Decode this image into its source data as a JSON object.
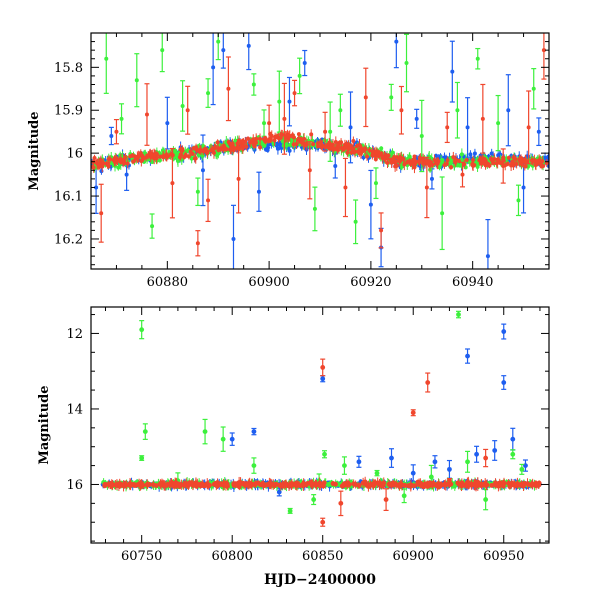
{
  "figure": {
    "xlabel": "HJD−2400000"
  },
  "palette": {
    "green": "#3cf03c",
    "blue": "#1e5ef0",
    "red": "#f0462d"
  },
  "chart_data": [
    {
      "type": "scatter",
      "title": "",
      "xlabel": "",
      "ylabel": "Magnitude",
      "xlim": [
        60865,
        60955
      ],
      "ylim": [
        16.27,
        15.72
      ],
      "y_inverted": true,
      "x_ticks": [
        "60880",
        "60900",
        "60920",
        "60940"
      ],
      "y_ticks": [
        "15.8",
        "15.9",
        "16",
        "16.1",
        "16.2"
      ],
      "series": [
        {
          "name": "green",
          "color": "#3cf03c",
          "baseline": [
            [
              60865,
              16.03
            ],
            [
              60875,
              16.01
            ],
            [
              60885,
              16.0
            ],
            [
              60895,
              15.98
            ],
            [
              60903,
              15.97
            ],
            [
              60910,
              15.98
            ],
            [
              60918,
              15.99
            ],
            [
              60926,
              16.02
            ],
            [
              60934,
              16.02
            ],
            [
              60944,
              16.02
            ],
            [
              60955,
              16.02
            ]
          ],
          "outliers": [
            [
              60868,
              15.78
            ],
            [
              60871,
              15.92
            ],
            [
              60874,
              15.83
            ],
            [
              60877,
              16.17
            ],
            [
              60879,
              15.76
            ],
            [
              60883,
              15.89
            ],
            [
              60886,
              16.09
            ],
            [
              60888,
              15.86
            ],
            [
              60890,
              15.74
            ],
            [
              60897,
              15.84
            ],
            [
              60899,
              15.93
            ],
            [
              60902,
              15.88
            ],
            [
              60906,
              15.82
            ],
            [
              60909,
              16.13
            ],
            [
              60912,
              15.95
            ],
            [
              60914,
              15.9
            ],
            [
              60917,
              16.16
            ],
            [
              60921,
              16.07
            ],
            [
              60924,
              15.87
            ],
            [
              60927,
              15.79
            ],
            [
              60930,
              15.96
            ],
            [
              60934,
              16.14
            ],
            [
              60937,
              15.9
            ],
            [
              60941,
              15.78
            ],
            [
              60945,
              15.93
            ],
            [
              60949,
              16.11
            ],
            [
              60952,
              15.85
            ]
          ]
        },
        {
          "name": "blue",
          "color": "#1e5ef0",
          "baseline": [
            [
              60865,
              16.03
            ],
            [
              60875,
              16.01
            ],
            [
              60885,
              16.0
            ],
            [
              60895,
              15.98
            ],
            [
              60903,
              15.98
            ],
            [
              60910,
              15.98
            ],
            [
              60918,
              15.99
            ],
            [
              60926,
              16.02
            ],
            [
              60934,
              16.02
            ],
            [
              60944,
              16.01
            ],
            [
              60955,
              16.02
            ]
          ],
          "outliers": [
            [
              60866,
              16.08
            ],
            [
              60869,
              15.96
            ],
            [
              60872,
              16.05
            ],
            [
              60880,
              15.93
            ],
            [
              60887,
              16.04
            ],
            [
              60889,
              15.8
            ],
            [
              60891,
              15.76
            ],
            [
              60893,
              16.2
            ],
            [
              60896,
              15.75
            ],
            [
              60898,
              16.09
            ],
            [
              60904,
              15.88
            ],
            [
              60907,
              15.79
            ],
            [
              60913,
              16.03
            ],
            [
              60916,
              15.94
            ],
            [
              60920,
              16.12
            ],
            [
              60922,
              16.22
            ],
            [
              60925,
              15.74
            ],
            [
              60929,
              15.92
            ],
            [
              60932,
              16.06
            ],
            [
              60936,
              15.81
            ],
            [
              60939,
              15.94
            ],
            [
              60943,
              16.24
            ],
            [
              60947,
              15.9
            ],
            [
              60950,
              16.08
            ],
            [
              60953,
              15.95
            ]
          ]
        },
        {
          "name": "red",
          "color": "#f0462d",
          "baseline": [
            [
              60865,
              16.03
            ],
            [
              60875,
              16.01
            ],
            [
              60885,
              16.0
            ],
            [
              60895,
              15.98
            ],
            [
              60903,
              15.96
            ],
            [
              60910,
              15.98
            ],
            [
              60918,
              15.99
            ],
            [
              60926,
              16.02
            ],
            [
              60934,
              16.02
            ],
            [
              60944,
              16.02
            ],
            [
              60955,
              16.02
            ]
          ],
          "outliers": [
            [
              60867,
              16.14
            ],
            [
              60870,
              15.95
            ],
            [
              60876,
              15.91
            ],
            [
              60881,
              16.07
            ],
            [
              60884,
              15.9
            ],
            [
              60886,
              16.21
            ],
            [
              60888,
              16.11
            ],
            [
              60892,
              15.85
            ],
            [
              60894,
              16.06
            ],
            [
              60900,
              15.93
            ],
            [
              60903,
              15.92
            ],
            [
              60905,
              15.86
            ],
            [
              60908,
              16.04
            ],
            [
              60911,
              15.95
            ],
            [
              60915,
              16.08
            ],
            [
              60919,
              15.87
            ],
            [
              60922,
              16.18
            ],
            [
              60926,
              15.9
            ],
            [
              60931,
              16.08
            ],
            [
              60935,
              15.94
            ],
            [
              60938,
              16.05
            ],
            [
              60942,
              15.92
            ],
            [
              60946,
              16.03
            ],
            [
              60951,
              15.94
            ],
            [
              60954,
              15.76
            ]
          ]
        }
      ]
    },
    {
      "type": "scatter",
      "title": "",
      "xlabel": "HJD−2400000",
      "ylabel": "Magnitude",
      "xlim": [
        60722,
        60975
      ],
      "ylim": [
        17.55,
        11.3
      ],
      "y_inverted": true,
      "x_ticks": [
        "60750",
        "60800",
        "60850",
        "60900",
        "60950"
      ],
      "y_ticks": [
        "12",
        "14",
        "16"
      ],
      "series": [
        {
          "name": "green",
          "color": "#3cf03c",
          "baseline": [
            [
              60728,
              16.0
            ],
            [
              60970,
              16.0
            ]
          ],
          "outliers": [
            [
              60750,
              11.9
            ],
            [
              60752,
              14.6
            ],
            [
              60750,
              15.3
            ],
            [
              60770,
              15.9
            ],
            [
              60785,
              14.6
            ],
            [
              60795,
              14.8
            ],
            [
              60812,
              15.5
            ],
            [
              60832,
              16.7
            ],
            [
              60845,
              16.4
            ],
            [
              60848,
              15.9
            ],
            [
              60851,
              15.2
            ],
            [
              60862,
              15.5
            ],
            [
              60880,
              15.7
            ],
            [
              60895,
              16.3
            ],
            [
              60910,
              15.8
            ],
            [
              60925,
              11.5
            ],
            [
              60930,
              15.4
            ],
            [
              60940,
              16.4
            ],
            [
              60955,
              15.2
            ],
            [
              60960,
              15.6
            ]
          ]
        },
        {
          "name": "blue",
          "color": "#1e5ef0",
          "baseline": [
            [
              60728,
              16.0
            ],
            [
              60970,
              16.0
            ]
          ],
          "outliers": [
            [
              60800,
              14.8
            ],
            [
              60812,
              14.6
            ],
            [
              60826,
              16.2
            ],
            [
              60850,
              13.2
            ],
            [
              60870,
              15.4
            ],
            [
              60888,
              15.3
            ],
            [
              60900,
              15.7
            ],
            [
              60912,
              15.4
            ],
            [
              60920,
              15.6
            ],
            [
              60930,
              12.6
            ],
            [
              60935,
              15.2
            ],
            [
              60945,
              15.1
            ],
            [
              60950,
              11.95
            ],
            [
              60950,
              13.3
            ],
            [
              60955,
              14.8
            ],
            [
              60962,
              15.5
            ]
          ]
        },
        {
          "name": "red",
          "color": "#f0462d",
          "baseline": [
            [
              60728,
              16.0
            ],
            [
              60970,
              16.0
            ]
          ],
          "outliers": [
            [
              60850,
              12.9
            ],
            [
              60850,
              17.0
            ],
            [
              60860,
              16.5
            ],
            [
              60900,
              14.1
            ],
            [
              60908,
              13.3
            ],
            [
              60885,
              16.4
            ],
            [
              60920,
              15.9
            ],
            [
              60940,
              15.3
            ]
          ]
        }
      ]
    }
  ]
}
